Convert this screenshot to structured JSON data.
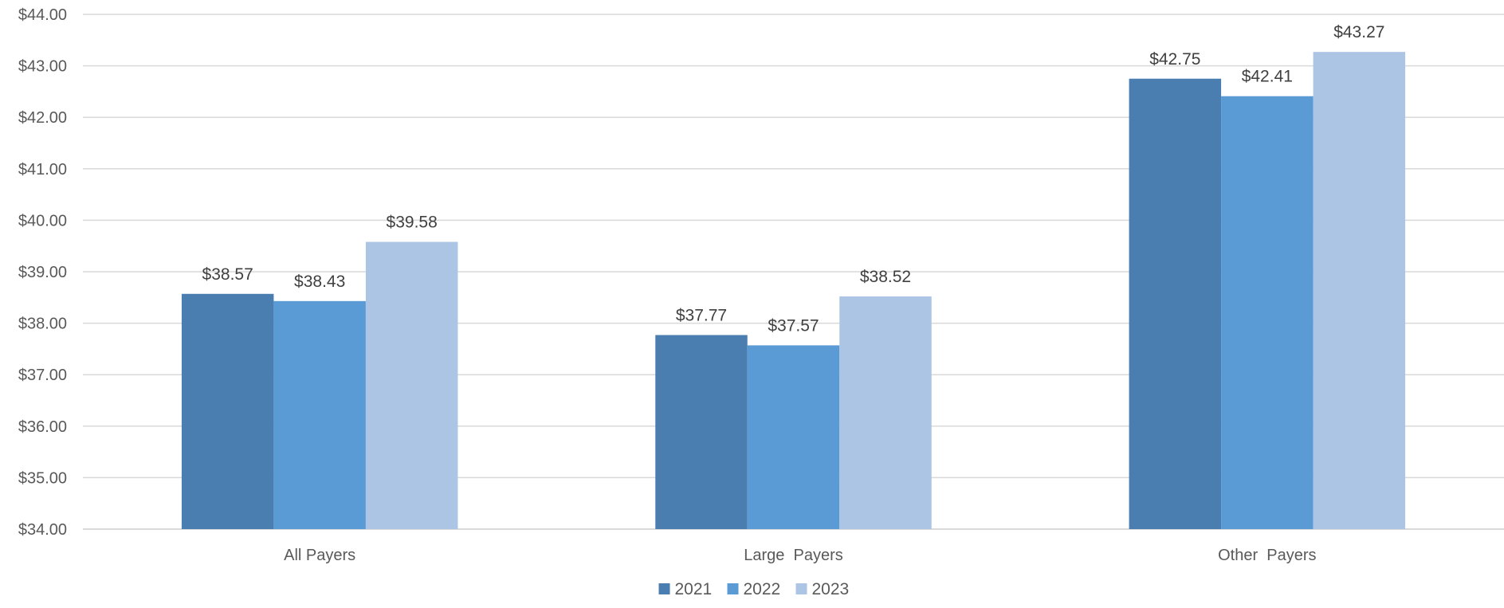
{
  "chart_data": {
    "type": "bar",
    "title": "",
    "xlabel": "",
    "ylabel": "",
    "categories": [
      "All Payers",
      "Large  Payers",
      "Other  Payers"
    ],
    "series": [
      {
        "name": "2021",
        "values": [
          38.57,
          37.77,
          42.75
        ],
        "labels": [
          "$38.57",
          "$37.77",
          "$42.75"
        ],
        "color": "#4a7eb0"
      },
      {
        "name": "2022",
        "values": [
          38.43,
          37.57,
          42.41
        ],
        "labels": [
          "$38.43",
          "$37.57",
          "$42.41"
        ],
        "color": "#5b9bd5"
      },
      {
        "name": "2023",
        "values": [
          39.58,
          38.52,
          43.27
        ],
        "labels": [
          "$39.58",
          "$38.52",
          "$43.27"
        ],
        "color": "#adc5e5"
      }
    ],
    "ylim": [
      34,
      44
    ],
    "yticks": [
      34,
      35,
      36,
      37,
      38,
      39,
      40,
      41,
      42,
      43,
      44
    ],
    "ytick_labels": [
      "$34.00",
      "$35.00",
      "$36.00",
      "$37.00",
      "$38.00",
      "$39.00",
      "$40.00",
      "$41.00",
      "$42.00",
      "$43.00",
      "$44.00"
    ],
    "grid": true,
    "legend_position": "bottom"
  }
}
